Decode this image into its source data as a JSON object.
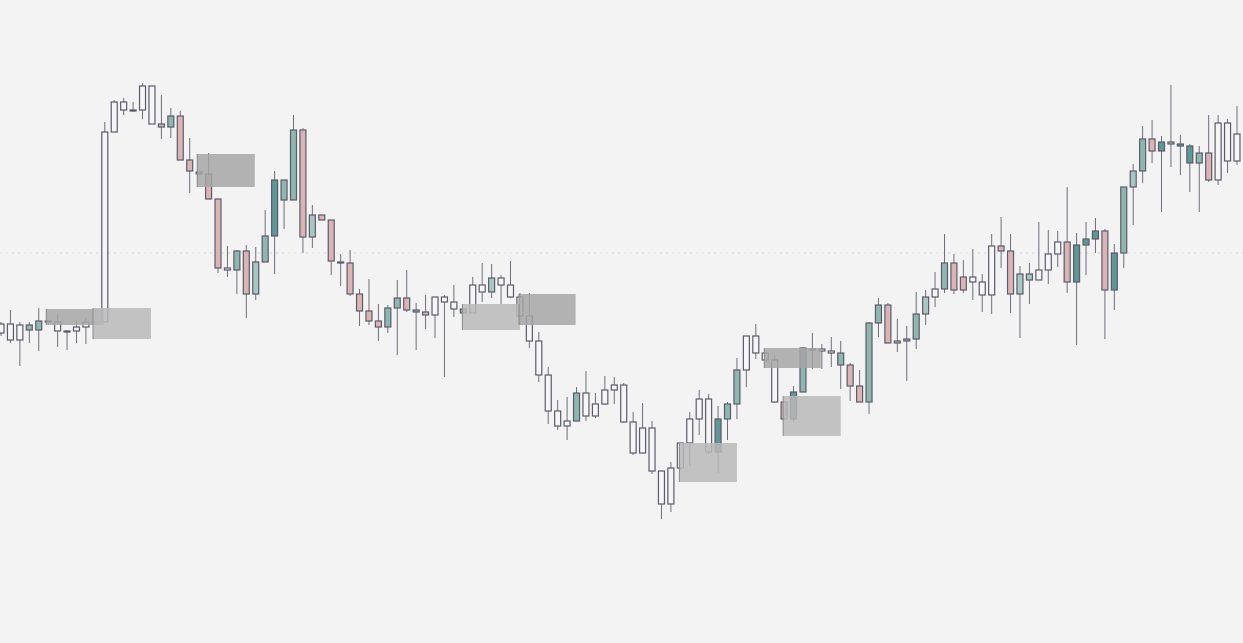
{
  "chart_data": {
    "type": "candlestick",
    "title": "",
    "xlabel": "",
    "ylabel": "",
    "grid": false,
    "axes_visible": false,
    "ylim": [
      0,
      64.3
    ],
    "colors": {
      "background": "#f3f3f3",
      "outline": "#5b5b6b",
      "wick": "#6e6e7a",
      "w": "#f6f6f6",
      "g": "#8fb7ae",
      "l": "#a9c7c1",
      "t": "#5f9795",
      "p": "#dbb5b6",
      "zone_dark": "#a6a6a6",
      "zone_light": "#b9b9b9",
      "reference_line": "#dddddd"
    },
    "reference_line": 39.0,
    "candles_format": [
      "open",
      "high",
      "low",
      "close",
      "body_color"
    ],
    "candles": [
      [
        31.0,
        32.1,
        30.7,
        31.9,
        "w"
      ],
      [
        30.3,
        33.3,
        30.0,
        31.9,
        "w"
      ],
      [
        30.3,
        32.1,
        27.7,
        31.8,
        "w"
      ],
      [
        31.3,
        32.1,
        30.0,
        31.8,
        "g"
      ],
      [
        31.3,
        33.5,
        29.2,
        32.2,
        "g"
      ],
      [
        32.1,
        32.3,
        31.8,
        32.2,
        "t"
      ],
      [
        31.2,
        32.9,
        29.6,
        32.1,
        "w"
      ],
      [
        31.1,
        31.3,
        29.3,
        31.2,
        "w"
      ],
      [
        31.2,
        32.3,
        30.0,
        31.6,
        "w"
      ],
      [
        31.6,
        32.5,
        29.9,
        32.1,
        "w"
      ],
      [
        32.1,
        32.2,
        32.0,
        32.1,
        "w"
      ],
      [
        32.1,
        52.1,
        32.1,
        51.1,
        "w"
      ],
      [
        51.1,
        54.3,
        51.1,
        54.1,
        "w"
      ],
      [
        53.3,
        54.5,
        52.8,
        54.1,
        "w"
      ],
      [
        53.3,
        54.1,
        53.1,
        53.3,
        "w"
      ],
      [
        53.3,
        56.0,
        52.4,
        55.7,
        "w"
      ],
      [
        51.9,
        55.7,
        51.9,
        55.7,
        "w"
      ],
      [
        51.9,
        54.8,
        50.4,
        51.6,
        "p"
      ],
      [
        51.6,
        53.5,
        50.5,
        52.7,
        "g"
      ],
      [
        52.7,
        53.2,
        48.3,
        48.3,
        "p"
      ],
      [
        48.3,
        50.5,
        45.0,
        47.2,
        "p"
      ],
      [
        47.1,
        47.1,
        46.9,
        46.9,
        "p"
      ],
      [
        46.9,
        49.0,
        44.4,
        44.4,
        "p"
      ],
      [
        44.4,
        44.4,
        37.0,
        37.5,
        "p"
      ],
      [
        37.3,
        39.7,
        36.6,
        37.5,
        "w"
      ],
      [
        37.3,
        39.3,
        34.9,
        39.2,
        "g"
      ],
      [
        39.2,
        39.8,
        32.5,
        34.9,
        "p"
      ],
      [
        34.9,
        39.6,
        34.3,
        38.1,
        "l"
      ],
      [
        38.1,
        43.3,
        38.1,
        40.7,
        "g"
      ],
      [
        40.7,
        47.2,
        36.9,
        46.3,
        "t"
      ],
      [
        44.3,
        46.3,
        41.4,
        46.3,
        "g"
      ],
      [
        44.3,
        52.8,
        44.3,
        51.3,
        "g"
      ],
      [
        51.3,
        51.5,
        39.0,
        40.6,
        "p"
      ],
      [
        40.6,
        43.8,
        39.5,
        42.8,
        "l"
      ],
      [
        42.8,
        42.8,
        42.3,
        42.3,
        "p"
      ],
      [
        42.3,
        42.3,
        36.8,
        38.2,
        "p"
      ],
      [
        38.0,
        38.9,
        35.7,
        38.1,
        "g"
      ],
      [
        38.0,
        39.3,
        34.7,
        34.9,
        "p"
      ],
      [
        34.9,
        35.4,
        31.7,
        33.2,
        "p"
      ],
      [
        33.2,
        36.4,
        31.8,
        32.2,
        "p"
      ],
      [
        32.2,
        33.9,
        30.2,
        31.6,
        "p"
      ],
      [
        31.6,
        33.8,
        31.0,
        33.5,
        "g"
      ],
      [
        33.5,
        36.3,
        28.8,
        34.5,
        "g"
      ],
      [
        34.5,
        37.3,
        33.1,
        33.3,
        "p"
      ],
      [
        33.1,
        34.0,
        29.3,
        33.3,
        "g"
      ],
      [
        33.1,
        34.8,
        31.4,
        32.8,
        "p"
      ],
      [
        32.8,
        34.6,
        30.5,
        34.6,
        "w"
      ],
      [
        34.1,
        34.8,
        26.6,
        34.6,
        "w"
      ],
      [
        33.4,
        35.8,
        32.6,
        34.1,
        "w"
      ],
      [
        33.0,
        33.4,
        33.0,
        33.4,
        "g"
      ],
      [
        33.0,
        36.6,
        33.0,
        35.8,
        "w"
      ],
      [
        35.1,
        38.0,
        34.1,
        35.8,
        "w"
      ],
      [
        35.1,
        37.9,
        34.5,
        36.5,
        "l"
      ],
      [
        35.8,
        36.8,
        33.9,
        36.5,
        "w"
      ],
      [
        34.6,
        38.2,
        34.5,
        35.8,
        "w"
      ],
      [
        32.7,
        35.0,
        31.8,
        34.6,
        "w"
      ],
      [
        30.2,
        35.0,
        29.5,
        32.7,
        "w"
      ],
      [
        26.8,
        31.1,
        26.1,
        30.2,
        "w"
      ],
      [
        23.2,
        27.6,
        21.9,
        26.8,
        "w"
      ],
      [
        21.7,
        24.3,
        21.3,
        23.2,
        "w"
      ],
      [
        21.7,
        24.6,
        20.3,
        22.2,
        "w"
      ],
      [
        22.2,
        25.6,
        22.2,
        25.0,
        "g"
      ],
      [
        22.7,
        27.2,
        22.2,
        25.0,
        "w"
      ],
      [
        22.7,
        25.0,
        22.5,
        23.9,
        "w"
      ],
      [
        23.9,
        26.7,
        23.8,
        25.3,
        "w"
      ],
      [
        25.3,
        26.6,
        23.9,
        25.8,
        "w"
      ],
      [
        22.1,
        26.0,
        22.0,
        25.8,
        "w"
      ],
      [
        19.0,
        23.1,
        18.8,
        22.1,
        "w"
      ],
      [
        19.0,
        24.0,
        19.0,
        21.5,
        "w"
      ],
      [
        17.2,
        22.2,
        16.9,
        21.5,
        "w"
      ],
      [
        13.9,
        17.2,
        12.4,
        17.2,
        "w"
      ],
      [
        13.9,
        18.1,
        13.1,
        17.5,
        "w"
      ],
      [
        17.5,
        20.0,
        17.3,
        20.0,
        "w"
      ],
      [
        20.0,
        23.1,
        17.7,
        22.4,
        "w"
      ],
      [
        22.4,
        25.3,
        20.8,
        24.4,
        "w"
      ],
      [
        19.1,
        24.9,
        18.9,
        24.4,
        "w"
      ],
      [
        19.1,
        23.7,
        17.0,
        22.4,
        "t"
      ],
      [
        22.4,
        24.1,
        20.3,
        23.9,
        "g"
      ],
      [
        23.9,
        28.5,
        22.4,
        27.3,
        "g"
      ],
      [
        27.3,
        30.7,
        25.6,
        30.7,
        "w"
      ],
      [
        29.0,
        31.9,
        28.4,
        30.7,
        "w"
      ],
      [
        28.3,
        29.0,
        28.3,
        29.0,
        "w"
      ],
      [
        24.1,
        28.8,
        24.0,
        28.3,
        "w"
      ],
      [
        24.1,
        24.1,
        22.4,
        22.4,
        "p"
      ],
      [
        22.4,
        25.7,
        22.1,
        25.1,
        "t"
      ],
      [
        25.1,
        29.6,
        25.1,
        29.5,
        "g"
      ],
      [
        29.4,
        31.0,
        27.4,
        29.4,
        "t"
      ],
      [
        29.2,
        29.9,
        27.4,
        29.4,
        "w"
      ],
      [
        29.0,
        30.6,
        27.6,
        29.2,
        "w"
      ],
      [
        27.8,
        30.2,
        25.4,
        29.0,
        "g"
      ],
      [
        27.8,
        28.0,
        24.2,
        25.7,
        "p"
      ],
      [
        25.7,
        27.3,
        24.1,
        24.1,
        "p"
      ],
      [
        24.1,
        32.1,
        22.9,
        32.0,
        "g"
      ],
      [
        32.0,
        34.5,
        30.6,
        33.8,
        "g"
      ],
      [
        33.8,
        34.0,
        30.0,
        30.0,
        "p"
      ],
      [
        30.2,
        32.4,
        29.1,
        30.0,
        "p"
      ],
      [
        30.2,
        31.7,
        26.2,
        30.4,
        "g"
      ],
      [
        30.4,
        35.1,
        29.4,
        32.9,
        "g"
      ],
      [
        32.9,
        35.3,
        31.8,
        34.6,
        "l"
      ],
      [
        34.6,
        37.1,
        33.6,
        35.4,
        "w"
      ],
      [
        35.4,
        40.9,
        35.0,
        38.0,
        "g"
      ],
      [
        38.0,
        38.9,
        34.9,
        35.3,
        "p"
      ],
      [
        36.6,
        38.3,
        35.0,
        35.3,
        "p"
      ],
      [
        36.1,
        39.4,
        34.3,
        36.6,
        "w"
      ],
      [
        34.8,
        36.9,
        33.1,
        36.1,
        "w"
      ],
      [
        34.8,
        40.9,
        32.9,
        39.7,
        "w"
      ],
      [
        39.7,
        42.6,
        37.5,
        39.2,
        "p"
      ],
      [
        39.2,
        40.9,
        33.0,
        34.9,
        "p"
      ],
      [
        34.9,
        37.7,
        30.5,
        36.9,
        "l"
      ],
      [
        36.3,
        38.0,
        33.9,
        36.9,
        "l"
      ],
      [
        36.3,
        42.1,
        36.3,
        37.3,
        "w"
      ],
      [
        37.3,
        41.3,
        35.9,
        38.9,
        "w"
      ],
      [
        38.9,
        41.2,
        37.6,
        40.1,
        "w"
      ],
      [
        40.1,
        45.6,
        35.0,
        36.1,
        "p"
      ],
      [
        36.1,
        41.0,
        29.8,
        39.8,
        "t"
      ],
      [
        39.8,
        42.1,
        36.8,
        40.4,
        "t"
      ],
      [
        40.4,
        42.5,
        39.0,
        41.2,
        "t"
      ],
      [
        41.2,
        41.4,
        30.4,
        35.3,
        "p"
      ],
      [
        35.3,
        39.9,
        33.3,
        39.0,
        "t"
      ],
      [
        39.0,
        45.6,
        37.5,
        45.6,
        "g"
      ],
      [
        45.6,
        47.9,
        41.8,
        47.2,
        "l"
      ],
      [
        47.2,
        51.7,
        46.0,
        50.4,
        "g"
      ],
      [
        50.4,
        52.3,
        48.0,
        49.2,
        "p"
      ],
      [
        49.2,
        50.7,
        43.1,
        50.1,
        "t"
      ],
      [
        50.1,
        55.8,
        47.6,
        49.9,
        "p"
      ],
      [
        49.7,
        50.8,
        46.8,
        49.9,
        "t"
      ],
      [
        48.0,
        49.9,
        45.1,
        49.7,
        "t"
      ],
      [
        48.0,
        49.7,
        43.1,
        49.0,
        "g"
      ],
      [
        49.0,
        52.8,
        46.1,
        46.3,
        "p"
      ],
      [
        46.3,
        52.8,
        45.8,
        52.0,
        "w"
      ],
      [
        48.2,
        52.4,
        47.0,
        52.0,
        "w"
      ],
      [
        48.2,
        53.7,
        47.8,
        50.9,
        "w"
      ]
    ],
    "zones_format": [
      "from_bar",
      "to_bar",
      "top",
      "bottom",
      "shade"
    ],
    "zones": [
      [
        4.8,
        10.9,
        33.4,
        31.8,
        "dark"
      ],
      [
        9.75,
        15.9,
        33.5,
        30.4,
        "light"
      ],
      [
        20.8,
        26.9,
        48.9,
        45.6,
        "dark"
      ],
      [
        48.9,
        55.0,
        33.9,
        31.3,
        "light"
      ],
      [
        54.9,
        60.9,
        34.9,
        31.8,
        "dark"
      ],
      [
        71.9,
        78.0,
        20.0,
        16.1,
        "light"
      ],
      [
        80.9,
        86.9,
        29.5,
        27.5,
        "dark"
      ],
      [
        82.9,
        89.0,
        24.7,
        20.7,
        "light"
      ]
    ]
  }
}
